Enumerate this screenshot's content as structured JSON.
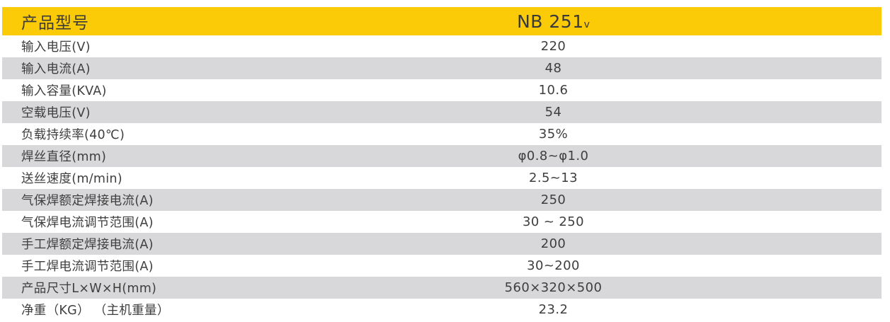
{
  "colors": {
    "header_bg": "#FCCB08",
    "stripe_bg": "#D8D8DA",
    "text": "#3E3E3E",
    "header_text": "#3A3A3A"
  },
  "header": {
    "label": "产品型号",
    "model": "NB 251",
    "model_suffix": "v"
  },
  "rows": [
    {
      "label": "输入电压(V)",
      "value": "220"
    },
    {
      "label": "输入电流(A)",
      "value": "48"
    },
    {
      "label": "输入容量(KVA)",
      "value": "10.6"
    },
    {
      "label": "空载电压(V)",
      "value": "54"
    },
    {
      "label": "负载持续率(40℃)",
      "value": "35%"
    },
    {
      "label": "焊丝直径(mm)",
      "value": "φ0.8~φ1.0"
    },
    {
      "label": "送丝速度(m/min)",
      "value": "2.5~13"
    },
    {
      "label": "气保焊额定焊接电流(A)",
      "value": "250"
    },
    {
      "label": "气保焊电流调节范围(A)",
      "value": "30 ~ 250"
    },
    {
      "label": "手工焊额定焊接电流(A)",
      "value": "200"
    },
    {
      "label": "手工焊电流调节范围(A)",
      "value": "30~200"
    },
    {
      "label": "产品尺寸L×W×H(mm)",
      "value": "560×320×500"
    },
    {
      "label": "净重（KG） （主机重量）",
      "value": "23.2"
    }
  ]
}
